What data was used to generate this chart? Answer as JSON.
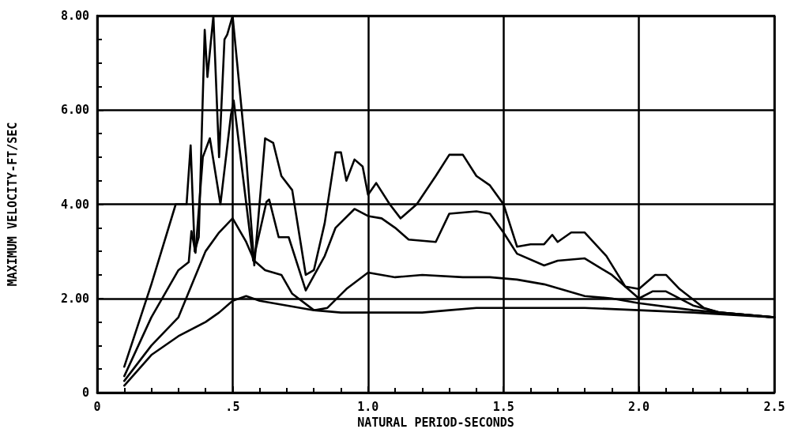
{
  "chart_data": {
    "type": "line",
    "xlabel": "NATURAL PERIOD-SECONDS",
    "ylabel": "MAXIMUM VELOCITY-FT/SEC",
    "xlim": [
      0,
      2.5
    ],
    "xticks": [
      0,
      {
        "value": 0.5,
        "label": ".5"
      },
      {
        "value": 1,
        "label": "1.0"
      },
      {
        "value": 1.5,
        "label": "1.5"
      },
      {
        "value": 2,
        "label": "2.0"
      },
      {
        "value": 2.5,
        "label": "2.5"
      }
    ],
    "ylim": [
      0,
      8
    ],
    "yticks": [
      0,
      {
        "value": 2,
        "label": "2.00"
      },
      {
        "value": 4,
        "label": "4.00"
      },
      {
        "value": 6,
        "label": "6.00"
      },
      {
        "value": 8,
        "label": "8.00"
      }
    ],
    "grid": true,
    "marker": "none",
    "line_style": "solid",
    "series": [
      {
        "color": "#000000",
        "x": [
          0.1,
          0.2,
          0.29,
          0.33,
          0.345,
          0.36,
          0.375,
          0.397,
          0.407,
          0.429,
          0.45,
          0.47,
          0.48,
          0.5,
          0.55,
          0.58,
          0.62,
          0.65,
          0.68,
          0.72,
          0.77,
          0.8,
          0.84,
          0.88,
          0.9,
          0.92,
          0.95,
          0.98,
          1.0,
          1.03,
          1.08,
          1.12,
          1.18,
          1.25,
          1.3,
          1.35,
          1.4,
          1.45,
          1.5,
          1.55,
          1.6,
          1.65,
          1.68,
          1.7,
          1.75,
          1.8,
          1.88,
          1.95,
          2.0,
          2.06,
          2.1,
          2.15,
          2.24,
          2.3,
          2.5
        ],
        "values": [
          0.55,
          2.3,
          4.0,
          4.0,
          5.25,
          3.0,
          3.3,
          7.7,
          6.7,
          8.0,
          5.0,
          7.5,
          7.6,
          8.0,
          5.0,
          2.7,
          5.4,
          5.3,
          4.6,
          4.3,
          2.5,
          2.6,
          3.6,
          5.1,
          5.1,
          4.5,
          4.95,
          4.8,
          4.2,
          4.45,
          4.0,
          3.7,
          4.0,
          4.6,
          5.05,
          5.05,
          4.6,
          4.4,
          4.0,
          3.1,
          3.15,
          3.15,
          3.35,
          3.2,
          3.4,
          3.4,
          2.9,
          2.25,
          2.2,
          2.5,
          2.5,
          2.2,
          1.8,
          1.7,
          1.6
        ]
      },
      {
        "color": "#000000",
        "x": [
          0.1,
          0.2,
          0.3,
          0.338,
          0.348,
          0.363,
          0.39,
          0.416,
          0.455,
          0.494,
          0.504,
          0.576,
          0.625,
          0.635,
          0.67,
          0.707,
          0.77,
          0.84,
          0.88,
          0.95,
          1.0,
          1.05,
          1.1,
          1.15,
          1.25,
          1.3,
          1.4,
          1.45,
          1.5,
          1.55,
          1.65,
          1.7,
          1.8,
          1.9,
          1.98,
          2.0,
          2.05,
          2.1,
          2.2,
          2.3,
          2.5
        ],
        "values": [
          0.35,
          1.6,
          2.6,
          2.77,
          3.43,
          2.97,
          5.0,
          5.4,
          4.0,
          5.9,
          6.2,
          2.8,
          4.05,
          4.1,
          3.3,
          3.3,
          2.17,
          2.9,
          3.5,
          3.9,
          3.75,
          3.7,
          3.5,
          3.25,
          3.2,
          3.8,
          3.85,
          3.8,
          3.4,
          2.95,
          2.7,
          2.8,
          2.85,
          2.5,
          2.1,
          2.0,
          2.15,
          2.15,
          1.85,
          1.7,
          1.6
        ]
      },
      {
        "color": "#000000",
        "x": [
          0.1,
          0.2,
          0.3,
          0.35,
          0.4,
          0.45,
          0.5,
          0.55,
          0.58,
          0.62,
          0.68,
          0.72,
          0.8,
          0.85,
          0.92,
          1.0,
          1.1,
          1.2,
          1.35,
          1.45,
          1.55,
          1.65,
          1.8,
          1.9,
          2.0,
          2.2,
          2.5
        ],
        "values": [
          0.25,
          1.0,
          1.6,
          2.3,
          3.0,
          3.4,
          3.7,
          3.2,
          2.8,
          2.6,
          2.5,
          2.1,
          1.75,
          1.8,
          2.2,
          2.55,
          2.45,
          2.5,
          2.45,
          2.45,
          2.4,
          2.3,
          2.05,
          2.0,
          1.9,
          1.75,
          1.6
        ]
      },
      {
        "color": "#000000",
        "x": [
          0.1,
          0.2,
          0.3,
          0.4,
          0.45,
          0.5,
          0.55,
          0.6,
          0.7,
          0.8,
          0.9,
          1.0,
          1.2,
          1.3,
          1.4,
          1.6,
          1.8,
          2.0,
          2.2,
          2.5
        ],
        "values": [
          0.15,
          0.8,
          1.2,
          1.5,
          1.7,
          1.95,
          2.05,
          1.95,
          1.85,
          1.75,
          1.7,
          1.7,
          1.7,
          1.75,
          1.8,
          1.8,
          1.8,
          1.75,
          1.7,
          1.6
        ]
      }
    ]
  }
}
